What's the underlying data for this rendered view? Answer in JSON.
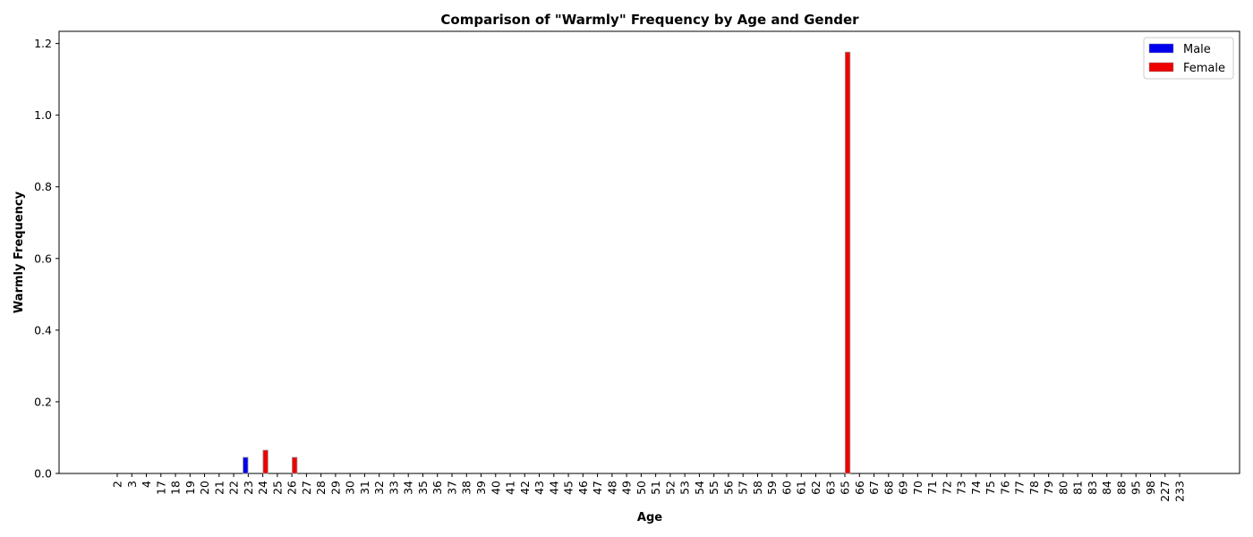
{
  "chart_data": {
    "type": "bar",
    "title": "Comparison of \"Warmly\" Frequency by Age and Gender",
    "xlabel": "Age",
    "ylabel": "Warmly Frequency",
    "ylim": [
      0,
      1.234
    ],
    "yticks": [
      "0.0",
      "0.2",
      "0.4",
      "0.6",
      "0.8",
      "1.0",
      "1.2"
    ],
    "grid": false,
    "legend_position": "top-right",
    "categories": [
      "2",
      "3",
      "4",
      "17",
      "18",
      "19",
      "20",
      "21",
      "22",
      "23",
      "24",
      "25",
      "26",
      "27",
      "28",
      "29",
      "30",
      "31",
      "32",
      "33",
      "34",
      "35",
      "36",
      "37",
      "38",
      "39",
      "40",
      "41",
      "42",
      "43",
      "44",
      "45",
      "46",
      "47",
      "48",
      "49",
      "50",
      "51",
      "52",
      "53",
      "54",
      "55",
      "56",
      "57",
      "58",
      "59",
      "60",
      "61",
      "62",
      "63",
      "65",
      "66",
      "67",
      "68",
      "69",
      "70",
      "71",
      "72",
      "73",
      "74",
      "75",
      "76",
      "77",
      "78",
      "79",
      "80",
      "81",
      "83",
      "84",
      "88",
      "95",
      "98",
      "227",
      "233"
    ],
    "series": [
      {
        "name": "Male",
        "color": "#0000ee",
        "values": [
          0,
          0,
          0,
          0,
          0,
          0,
          0,
          0,
          0,
          0.045,
          0,
          0,
          0,
          0,
          0,
          0,
          0,
          0,
          0,
          0,
          0,
          0,
          0,
          0,
          0,
          0,
          0,
          0,
          0,
          0,
          0,
          0,
          0,
          0,
          0,
          0,
          0,
          0,
          0,
          0,
          0,
          0,
          0,
          0,
          0,
          0,
          0,
          0,
          0,
          0,
          0,
          0,
          0,
          0,
          0,
          0,
          0,
          0,
          0,
          0,
          0,
          0,
          0,
          0,
          0,
          0,
          0,
          0,
          0,
          0,
          0,
          0,
          0,
          0
        ]
      },
      {
        "name": "Female",
        "color": "#ee0000",
        "values": [
          0,
          0,
          0,
          0,
          0,
          0,
          0,
          0,
          0,
          0,
          0.065,
          0,
          0.045,
          0,
          0,
          0,
          0,
          0,
          0,
          0,
          0,
          0,
          0,
          0,
          0,
          0,
          0,
          0,
          0,
          0,
          0,
          0,
          0,
          0,
          0,
          0,
          0,
          0,
          0,
          0,
          0,
          0,
          0,
          0,
          0,
          0,
          0,
          0,
          0,
          0,
          1.176,
          0,
          0,
          0,
          0,
          0,
          0,
          0,
          0,
          0,
          0,
          0,
          0,
          0,
          0,
          0,
          0,
          0,
          0,
          0,
          0,
          0,
          0,
          0
        ]
      }
    ]
  }
}
